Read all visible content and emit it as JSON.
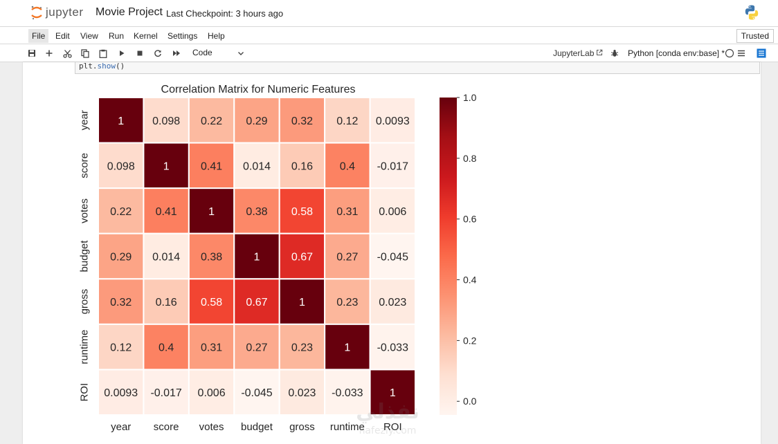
{
  "header": {
    "logo_text": "jupyter",
    "notebook_title": "Movie Project",
    "checkpoint": "Last Checkpoint: 3 hours ago",
    "python_logo_icon": "python-logo-icon"
  },
  "menubar": {
    "items": [
      "File",
      "Edit",
      "View",
      "Run",
      "Kernel",
      "Settings",
      "Help"
    ],
    "trusted": "Trusted"
  },
  "toolbar": {
    "icons": [
      "save-icon",
      "add-icon",
      "cut-icon",
      "copy-icon",
      "paste-icon",
      "run-icon",
      "stop-icon",
      "restart-icon",
      "fast-forward-icon"
    ],
    "cell_type": "Code",
    "jupyterlab_link": "JupyterLab",
    "kernel": "Python [conda env:base] *"
  },
  "cell": {
    "code_fn": "plt.",
    "code_call": "show",
    "code_parens": "()"
  },
  "watermark": {
    "arabic": "نفذلي",
    "latin": "nafezly.com"
  },
  "colors": {
    "accent": "#1976d2",
    "cmap_low": "#fff5f0",
    "cmap_high": "#67000d"
  },
  "chart_data": {
    "type": "heatmap",
    "title": "Correlation Matrix for Numeric Features",
    "x_labels": [
      "year",
      "score",
      "votes",
      "budget",
      "gross",
      "runtime",
      "ROI"
    ],
    "y_labels": [
      "year",
      "score",
      "votes",
      "budget",
      "gross",
      "runtime",
      "ROI"
    ],
    "values": [
      [
        1,
        0.098,
        0.22,
        0.29,
        0.32,
        0.12,
        0.0093
      ],
      [
        0.098,
        1,
        0.41,
        0.014,
        0.16,
        0.4,
        -0.017
      ],
      [
        0.22,
        0.41,
        1,
        0.38,
        0.58,
        0.31,
        0.006
      ],
      [
        0.29,
        0.014,
        0.38,
        1,
        0.67,
        0.27,
        -0.045
      ],
      [
        0.32,
        0.16,
        0.58,
        0.67,
        1,
        0.23,
        0.023
      ],
      [
        0.12,
        0.4,
        0.31,
        0.27,
        0.23,
        1,
        -0.033
      ],
      [
        0.0093,
        -0.017,
        0.006,
        -0.045,
        0.023,
        -0.033,
        1
      ]
    ],
    "annotations": [
      [
        "1",
        "0.098",
        "0.22",
        "0.29",
        "0.32",
        "0.12",
        "0.0093"
      ],
      [
        "0.098",
        "1",
        "0.41",
        "0.014",
        "0.16",
        "0.4",
        "-0.017"
      ],
      [
        "0.22",
        "0.41",
        "1",
        "0.38",
        "0.58",
        "0.31",
        "0.006"
      ],
      [
        "0.29",
        "0.014",
        "0.38",
        "1",
        "0.67",
        "0.27",
        "-0.045"
      ],
      [
        "0.32",
        "0.16",
        "0.58",
        "0.67",
        "1",
        "0.23",
        "0.023"
      ],
      [
        "0.12",
        "0.4",
        "0.31",
        "0.27",
        "0.23",
        "1",
        "-0.033"
      ],
      [
        "0.0093",
        "-0.017",
        "0.006",
        "-0.045",
        "0.023",
        "-0.033",
        "1"
      ]
    ],
    "colorbar": {
      "range": [
        -0.045,
        1.0
      ],
      "ticks": [
        0.0,
        0.2,
        0.4,
        0.6,
        0.8,
        1.0
      ],
      "tick_labels": [
        "0.0",
        "0.2",
        "0.4",
        "0.6",
        "0.8",
        "1.0"
      ]
    },
    "cmap": "Reds"
  }
}
